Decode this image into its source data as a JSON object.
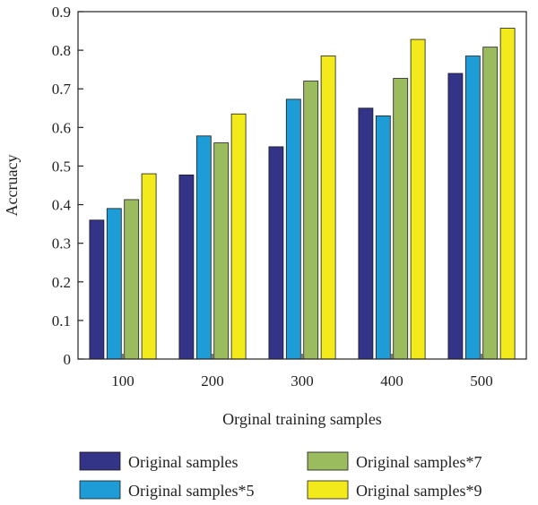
{
  "chart_data": {
    "type": "bar",
    "title": "",
    "xlabel": "Orginal training samples",
    "ylabel": "Accruacy",
    "categories": [
      "100",
      "200",
      "300",
      "400",
      "500"
    ],
    "ylim": [
      0,
      0.9
    ],
    "yticks": [
      "0",
      "0.1",
      "0.2",
      "0.3",
      "0.4",
      "0.5",
      "0.6",
      "0.7",
      "0.8",
      "0.9"
    ],
    "grid": false,
    "legend_position": "bottom",
    "series": [
      {
        "name": "Original samples",
        "color": "#333387",
        "values": [
          0.36,
          0.477,
          0.55,
          0.65,
          0.74
        ]
      },
      {
        "name": "Original samples*5",
        "color": "#1E9CD6",
        "values": [
          0.39,
          0.578,
          0.673,
          0.63,
          0.785
        ]
      },
      {
        "name": "Original samples*7",
        "color": "#9BBB5F",
        "values": [
          0.413,
          0.56,
          0.72,
          0.727,
          0.808
        ]
      },
      {
        "name": "Original samples*9",
        "color": "#F3EA1B",
        "values": [
          0.48,
          0.635,
          0.785,
          0.828,
          0.857
        ]
      }
    ]
  }
}
